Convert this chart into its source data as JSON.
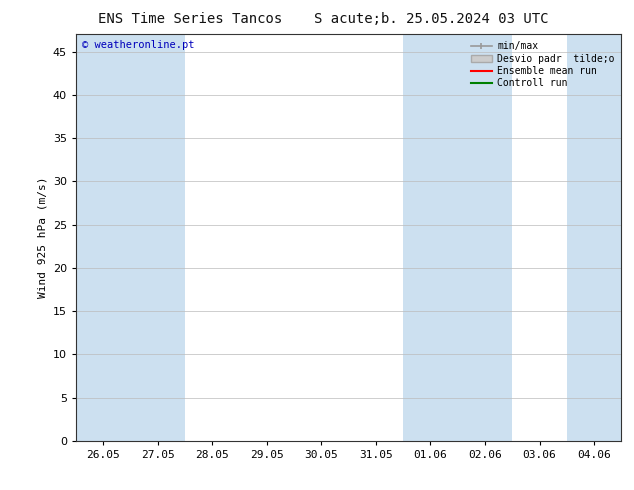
{
  "title_left": "ENS Time Series Tancos",
  "title_right": "S acute;b. 25.05.2024 03 UTC",
  "ylabel": "Wind 925 hPa (m/s)",
  "watermark": "© weatheronline.pt",
  "ylim": [
    0,
    47
  ],
  "yticks": [
    0,
    5,
    10,
    15,
    20,
    25,
    30,
    35,
    40,
    45
  ],
  "xtick_labels": [
    "26.05",
    "27.05",
    "28.05",
    "29.05",
    "30.05",
    "31.05",
    "01.06",
    "02.06",
    "03.06",
    "04.06"
  ],
  "background_color": "#ffffff",
  "plot_bg_color": "#ffffff",
  "shaded_color": "#cce0f0",
  "legend_entries": [
    {
      "label": "min/max",
      "color": "#aaaaaa",
      "type": "errorbar"
    },
    {
      "label": "Desvio padr  tilde;o",
      "color": "#cccccc",
      "type": "patch"
    },
    {
      "label": "Ensemble mean run",
      "color": "#ff0000",
      "type": "line"
    },
    {
      "label": "Controll run",
      "color": "#008000",
      "type": "line"
    }
  ],
  "title_fontsize": 10,
  "axis_fontsize": 8,
  "tick_fontsize": 8,
  "watermark_color": "#0000bb"
}
